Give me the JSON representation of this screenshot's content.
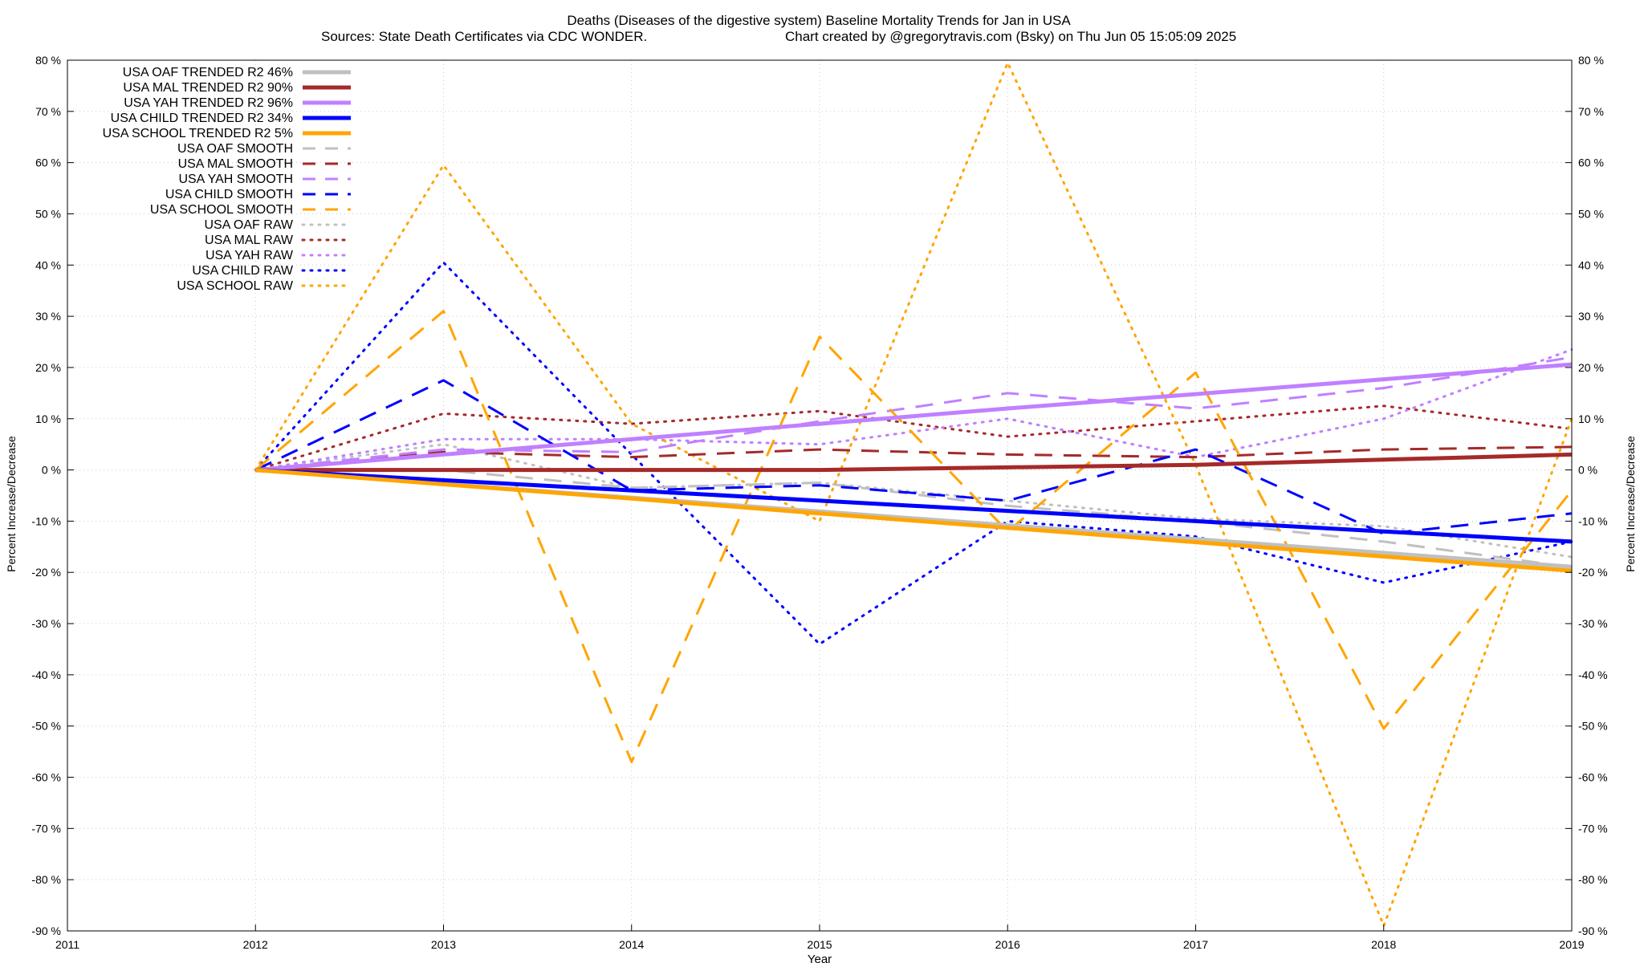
{
  "chart_data": {
    "type": "line",
    "title": "Deaths (Diseases of the digestive system)  Baseline Mortality Trends for Jan in USA",
    "subtitle_left": "Sources: State Death Certificates via CDC WONDER.",
    "subtitle_right": "Chart created by @gregorytravis.com (Bsky) on Thu Jun 05 15:05:09 2025",
    "xlabel": "Year",
    "ylabel": "Percent Increase/Decrease",
    "y2label": "Percent Increase/Decrease",
    "xlim": [
      2011,
      2019
    ],
    "ylim": [
      -90,
      80
    ],
    "x_ticks": [
      "2011",
      "2012",
      "2013",
      "2014",
      "2015",
      "2016",
      "2017",
      "2018",
      "2019"
    ],
    "y_ticks": [
      "80 %",
      "70 %",
      "60 %",
      "50 %",
      "40 %",
      "30 %",
      "20 %",
      "10 %",
      "0 %",
      "-10 %",
      "-20 %",
      "-30 %",
      "-40 %",
      "-50 %",
      "-60 %",
      "-70 %",
      "-80 %",
      "-90 %"
    ],
    "y_tick_values": [
      80,
      70,
      60,
      50,
      40,
      30,
      20,
      10,
      0,
      -10,
      -20,
      -30,
      -40,
      -50,
      -60,
      -70,
      -80,
      -90
    ],
    "grid": true,
    "legend_position": "top-left",
    "x": [
      2012,
      2013,
      2014,
      2015,
      2016,
      2017,
      2018,
      2019
    ],
    "series": [
      {
        "name": "USA OAF TRENDED R2  46%",
        "style": "solid",
        "color": "#c0c0c0",
        "values": [
          0,
          -2.7,
          -5.4,
          -8.1,
          -10.8,
          -13.5,
          -16.2,
          -18.9
        ]
      },
      {
        "name": "USA MAL TRENDED R2  90%",
        "style": "solid",
        "color": "#a52a2a",
        "values": [
          0,
          0,
          0,
          0,
          0.5,
          1,
          2,
          3
        ]
      },
      {
        "name": "USA YAH TRENDED R2  96%",
        "style": "solid",
        "color": "#c080ff",
        "values": [
          0,
          3,
          6,
          9,
          12,
          14.8,
          17.7,
          20.6
        ]
      },
      {
        "name": "USA CHILD TRENDED R2  34%",
        "style": "solid",
        "color": "#0000ff",
        "values": [
          0,
          -2,
          -4,
          -6,
          -8,
          -10,
          -12,
          -14
        ]
      },
      {
        "name": "USA SCHOOL TRENDED R2   5%",
        "style": "solid",
        "color": "#ffa500",
        "values": [
          0,
          -2.8,
          -5.6,
          -8.5,
          -11.3,
          -14.1,
          -16.9,
          -19.7
        ]
      },
      {
        "name": "USA OAF SMOOTH",
        "style": "dashed",
        "color": "#c0c0c0",
        "values": [
          0,
          0,
          -3.5,
          -2.5,
          -7,
          -10,
          -14,
          -19
        ]
      },
      {
        "name": "USA MAL SMOOTH",
        "style": "dashed",
        "color": "#a52a2a",
        "values": [
          0,
          3.5,
          2.5,
          4,
          3,
          2.5,
          4,
          4.5
        ]
      },
      {
        "name": "USA YAH SMOOTH",
        "style": "dashed",
        "color": "#c080ff",
        "values": [
          0,
          4,
          3.5,
          9.5,
          15,
          12,
          16,
          22
        ]
      },
      {
        "name": "USA CHILD SMOOTH",
        "style": "dashed",
        "color": "#0000ff",
        "values": [
          0,
          17.5,
          -4,
          -3,
          -6,
          4,
          -12.5,
          -8.5
        ]
      },
      {
        "name": "USA SCHOOL SMOOTH",
        "style": "dashed",
        "color": "#ffa500",
        "values": [
          0,
          31,
          -57,
          26,
          -12,
          19,
          -50.5,
          -4
        ]
      },
      {
        "name": "USA OAF RAW",
        "style": "dotted",
        "color": "#c0c0c0",
        "values": [
          0,
          5,
          -3.5,
          -2.5,
          -6,
          -9.5,
          -11,
          -17
        ]
      },
      {
        "name": "USA MAL RAW",
        "style": "dotted",
        "color": "#a52a2a",
        "values": [
          0,
          11,
          9,
          11.5,
          6.5,
          9.5,
          12.5,
          8
        ]
      },
      {
        "name": "USA YAH RAW",
        "style": "dotted",
        "color": "#c080ff",
        "values": [
          0,
          6,
          6,
          5,
          10,
          2.5,
          10,
          23.5
        ]
      },
      {
        "name": "USA CHILD RAW",
        "style": "dotted",
        "color": "#0000ff",
        "values": [
          0,
          40.5,
          3,
          -34,
          -10,
          -13,
          -22,
          -14
        ]
      },
      {
        "name": "USA SCHOOL RAW",
        "style": "dotted",
        "color": "#ffa500",
        "values": [
          0,
          59.5,
          9,
          -10,
          79.5,
          1,
          -89,
          10
        ]
      }
    ]
  }
}
